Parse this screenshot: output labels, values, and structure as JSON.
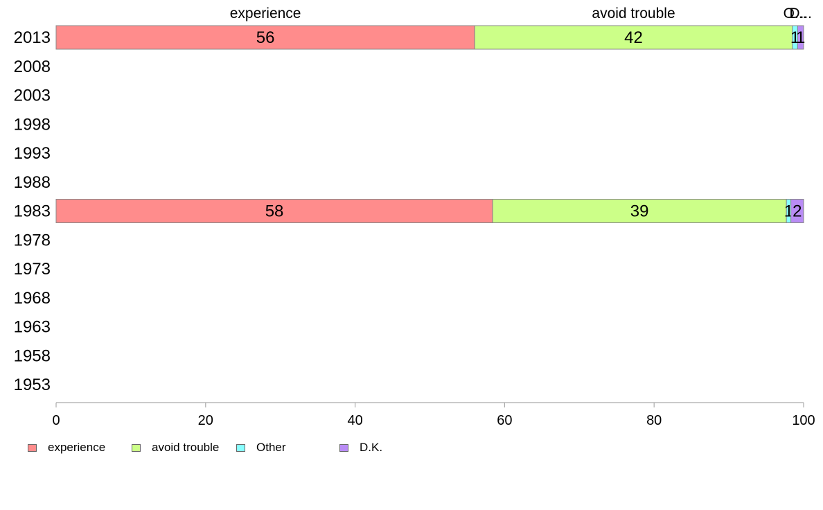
{
  "chart_data": {
    "type": "bar",
    "orientation": "horizontal",
    "stacked": true,
    "title": "",
    "xlabel": "",
    "ylabel": "",
    "xlim": [
      0,
      100
    ],
    "x_ticks": [
      "0",
      "20",
      "40",
      "60",
      "80",
      "100"
    ],
    "categories": [
      "2013",
      "2008",
      "2003",
      "1998",
      "1993",
      "1988",
      "1983",
      "1978",
      "1973",
      "1968",
      "1963",
      "1958",
      "1953"
    ],
    "top_labels": [
      "experience",
      "avoid trouble",
      "O...",
      "D..."
    ],
    "series": [
      {
        "name": "experience",
        "color": "#ff8c8c",
        "values": [
          56,
          null,
          null,
          null,
          null,
          null,
          58.4,
          null,
          null,
          null,
          null,
          null,
          null
        ],
        "labels": [
          "56",
          null,
          null,
          null,
          null,
          null,
          "58",
          null,
          null,
          null,
          null,
          null,
          null
        ]
      },
      {
        "name": "avoid trouble",
        "color": "#ccff88",
        "values": [
          42.5,
          null,
          null,
          null,
          null,
          null,
          39.3,
          null,
          null,
          null,
          null,
          null,
          null
        ],
        "labels": [
          "42",
          null,
          null,
          null,
          null,
          null,
          "39",
          null,
          null,
          null,
          null,
          null,
          null
        ]
      },
      {
        "name": "Other",
        "color": "#88ffff",
        "values": [
          0.7,
          null,
          null,
          null,
          null,
          null,
          0.6,
          null,
          null,
          null,
          null,
          null,
          null
        ],
        "labels": [
          "1",
          null,
          null,
          null,
          null,
          null,
          "1",
          null,
          null,
          null,
          null,
          null,
          null
        ]
      },
      {
        "name": "D.K.",
        "color": "#b98cf5",
        "values": [
          0.8,
          null,
          null,
          null,
          null,
          null,
          1.7,
          null,
          null,
          null,
          null,
          null,
          null
        ],
        "labels": [
          "1",
          null,
          null,
          null,
          null,
          null,
          "2",
          null,
          null,
          null,
          null,
          null,
          null
        ]
      }
    ],
    "grid": false,
    "legend_position": "bottom-left"
  }
}
